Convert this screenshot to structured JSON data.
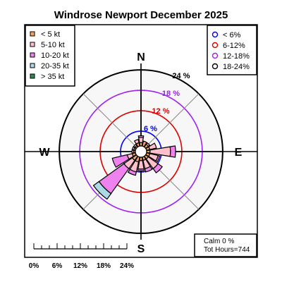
{
  "chart_data": {
    "type": "windrose",
    "title": "Windrose  Newport December 2025",
    "compass": {
      "north": "N",
      "south": "S",
      "east": "E",
      "west": "W"
    },
    "rings": [
      {
        "label": "6 %",
        "value": 6,
        "color": "#0000ff"
      },
      {
        "label": "12 %",
        "value": 12,
        "color": "#dd0000"
      },
      {
        "label": "18 %",
        "value": 18,
        "color": "#a020f0"
      },
      {
        "label": "24 %",
        "value": 24,
        "color": "#000000"
      }
    ],
    "speed_legend": [
      {
        "label": "< 5  kt",
        "color": "#f4a460"
      },
      {
        "label": "5-10 kt",
        "color": "#ffc0cb"
      },
      {
        "label": "10-20 kt",
        "color": "#ee82ee"
      },
      {
        "label": "20-35 kt",
        "color": "#add8e6"
      },
      {
        "label": "> 35 kt",
        "color": "#2e8b57"
      }
    ],
    "ring_legend": [
      {
        "label": "< 6%",
        "color": "#0000ff"
      },
      {
        "label": "6-12%",
        "color": "#dd0000"
      },
      {
        "label": "12-18%",
        "color": "#a020f0"
      },
      {
        "label": "18-24%",
        "color": "#000000"
      }
    ],
    "info": {
      "calm": "Calm 0 %",
      "hours": "Tot Hours=744"
    },
    "scale_labels": [
      "0%",
      "6%",
      "12%",
      "18%",
      "24%"
    ],
    "directions_deg": [
      0,
      22.5,
      45,
      67.5,
      90,
      112.5,
      135,
      157.5,
      180,
      202.5,
      225,
      247.5,
      270,
      292.5,
      315,
      337.5
    ],
    "series": [
      {
        "name": "< 5  kt",
        "values": [
          1.0,
          1.5,
          1.0,
          1.0,
          1.0,
          1.0,
          1.0,
          1.0,
          1.0,
          1.5,
          1.5,
          1.0,
          0.5,
          0.5,
          0.5,
          1.0
        ]
      },
      {
        "name": "5-10 kt",
        "values": [
          1.5,
          0,
          0.5,
          2.0,
          6.0,
          2.5,
          3.5,
          2.5,
          2.5,
          3.0,
          3.0,
          1.5,
          0.5,
          0.5,
          0.5,
          1.0
        ]
      },
      {
        "name": "10-20 kt",
        "values": [
          0.5,
          0,
          0,
          0,
          1.5,
          0.5,
          1.5,
          1.0,
          0.5,
          1.0,
          9.0,
          4.5,
          0,
          0,
          0,
          0
        ]
      },
      {
        "name": "20-35 kt",
        "values": [
          0,
          0,
          0,
          0,
          0,
          0,
          0,
          0,
          0,
          0,
          2.0,
          0,
          0,
          0,
          0,
          0
        ]
      },
      {
        "name": "> 35 kt",
        "values": [
          0,
          0,
          0,
          0,
          0,
          0,
          0,
          0,
          0,
          0,
          0,
          0,
          0,
          0,
          0,
          0
        ]
      }
    ]
  }
}
